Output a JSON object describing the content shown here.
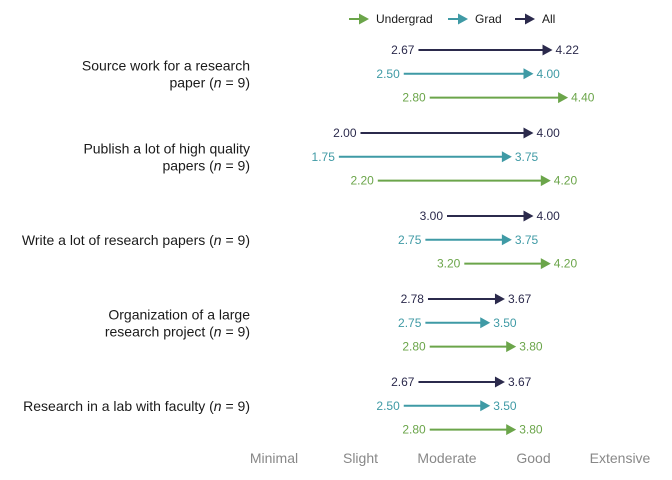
{
  "chart_data": {
    "type": "arrow-dumbbell",
    "title": "",
    "xlabel": "",
    "ylabel": "",
    "xlim": [
      1,
      5
    ],
    "x_ticks": [
      {
        "value": 1,
        "label": "Minimal"
      },
      {
        "value": 2,
        "label": "Slight"
      },
      {
        "value": 3,
        "label": "Moderate"
      },
      {
        "value": 4,
        "label": "Good"
      },
      {
        "value": 5,
        "label": "Extensive"
      }
    ],
    "legend": {
      "placement": "top",
      "entries": [
        {
          "name": "Undergrad",
          "color": "#6ba54a"
        },
        {
          "name": "Grad",
          "color": "#3f9aa5"
        },
        {
          "name": "All",
          "color": "#2b2a4c"
        }
      ]
    },
    "series_order": [
      "All",
      "Grad",
      "Undergrad"
    ],
    "colors": {
      "All": "#2b2a4c",
      "Grad": "#3f9aa5",
      "Undergrad": "#6ba54a"
    },
    "categories": [
      {
        "label_lines": [
          [
            {
              "t": "Source work for a research",
              "i": false
            }
          ],
          [
            {
              "t": "paper (",
              "i": false
            },
            {
              "t": "n",
              "i": true
            },
            {
              "t": " = 9)",
              "i": false
            }
          ]
        ],
        "values": {
          "All": {
            "start": 2.67,
            "end": 4.22,
            "start_label": "2.67",
            "end_label": "4.22"
          },
          "Grad": {
            "start": 2.5,
            "end": 4.0,
            "start_label": "2.50",
            "end_label": "4.00"
          },
          "Undergrad": {
            "start": 2.8,
            "end": 4.4,
            "start_label": "2.80",
            "end_label": "4.40"
          }
        }
      },
      {
        "label_lines": [
          [
            {
              "t": "Publish a lot of high quality",
              "i": false
            }
          ],
          [
            {
              "t": "papers (",
              "i": false
            },
            {
              "t": "n",
              "i": true
            },
            {
              "t": " = 9)",
              "i": false
            }
          ]
        ],
        "values": {
          "All": {
            "start": 2.0,
            "end": 4.0,
            "start_label": "2.00",
            "end_label": "4.00"
          },
          "Grad": {
            "start": 1.75,
            "end": 3.75,
            "start_label": "1.75",
            "end_label": "3.75"
          },
          "Undergrad": {
            "start": 2.2,
            "end": 4.2,
            "start_label": "2.20",
            "end_label": "4.20"
          }
        }
      },
      {
        "label_lines": [
          [
            {
              "t": "Write a lot of research papers (",
              "i": false
            },
            {
              "t": "n",
              "i": true
            },
            {
              "t": " = 9)",
              "i": false
            }
          ]
        ],
        "values": {
          "All": {
            "start": 3.0,
            "end": 4.0,
            "start_label": "3.00",
            "end_label": "4.00"
          },
          "Grad": {
            "start": 2.75,
            "end": 3.75,
            "start_label": "2.75",
            "end_label": "3.75"
          },
          "Undergrad": {
            "start": 3.2,
            "end": 4.2,
            "start_label": "3.20",
            "end_label": "4.20"
          }
        }
      },
      {
        "label_lines": [
          [
            {
              "t": "Organization of a large",
              "i": false
            }
          ],
          [
            {
              "t": "research project (",
              "i": false
            },
            {
              "t": "n",
              "i": true
            },
            {
              "t": " = 9)",
              "i": false
            }
          ]
        ],
        "values": {
          "All": {
            "start": 2.78,
            "end": 3.67,
            "start_label": "2.78",
            "end_label": "3.67"
          },
          "Grad": {
            "start": 2.75,
            "end": 3.5,
            "start_label": "2.75",
            "end_label": "3.50"
          },
          "Undergrad": {
            "start": 2.8,
            "end": 3.8,
            "start_label": "2.80",
            "end_label": "3.80"
          }
        }
      },
      {
        "label_lines": [
          [
            {
              "t": "Research in a lab with faculty (",
              "i": false
            },
            {
              "t": "n",
              "i": true
            },
            {
              "t": " = 9)",
              "i": false
            }
          ]
        ],
        "values": {
          "All": {
            "start": 2.67,
            "end": 3.67,
            "start_label": "2.67",
            "end_label": "3.67"
          },
          "Grad": {
            "start": 2.5,
            "end": 3.5,
            "start_label": "2.50",
            "end_label": "3.50"
          },
          "Undergrad": {
            "start": 2.8,
            "end": 3.8,
            "start_label": "2.80",
            "end_label": "3.80"
          }
        }
      }
    ]
  }
}
